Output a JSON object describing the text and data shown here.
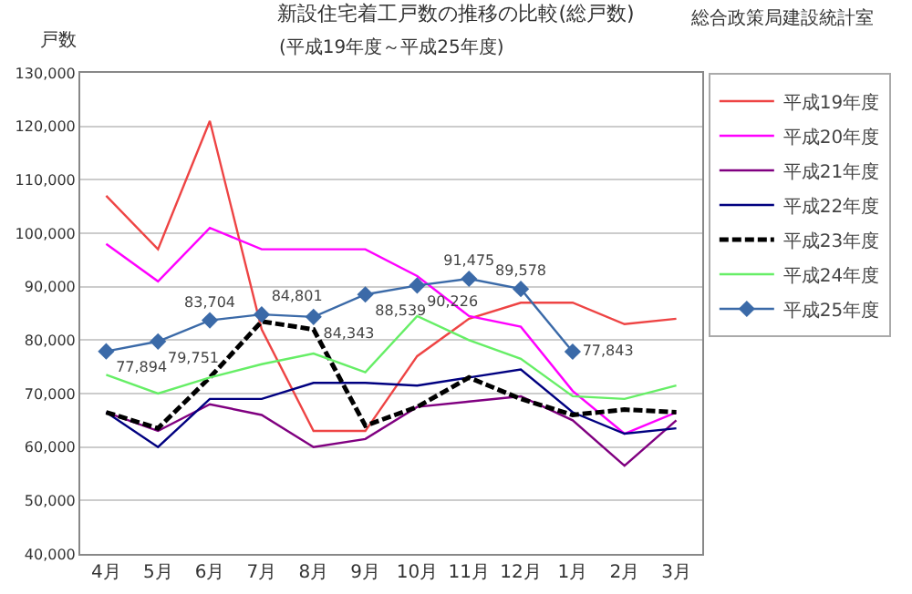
{
  "chart_data": {
    "type": "line",
    "title": "新設住宅着工戸数の推移の比較(総戸数)",
    "subtitle": "(平成19年度～平成25年度)",
    "ylabel": "戸数",
    "annotations": [
      "総合政策局建設統計室"
    ],
    "categories": [
      "4月",
      "5月",
      "6月",
      "7月",
      "8月",
      "9月",
      "10月",
      "11月",
      "12月",
      "1月",
      "2月",
      "3月"
    ],
    "ylim": [
      40000,
      130000
    ],
    "yticks": [
      {
        "value": 40000,
        "label": "40,000"
      },
      {
        "value": 50000,
        "label": "50,000"
      },
      {
        "value": 60000,
        "label": "60,000"
      },
      {
        "value": 70000,
        "label": "70,000"
      },
      {
        "value": 80000,
        "label": "80,000"
      },
      {
        "value": 90000,
        "label": "90,000"
      },
      {
        "value": 100000,
        "label": "100,000"
      },
      {
        "value": 110000,
        "label": "110,000"
      },
      {
        "value": 120000,
        "label": "120,000"
      },
      {
        "value": 130000,
        "label": "130,000"
      }
    ],
    "grid": "y",
    "legend": "right",
    "series": [
      {
        "name": "平成19年度",
        "color": "#ee4444",
        "values": [
          107000,
          97000,
          121000,
          82000,
          63000,
          63000,
          77000,
          84000,
          87000,
          87000,
          83000,
          84000
        ]
      },
      {
        "name": "平成20年度",
        "color": "#ff00ff",
        "values": [
          98000,
          91000,
          101000,
          97000,
          97000,
          97000,
          92000,
          84500,
          82500,
          70500,
          62500,
          66500
        ]
      },
      {
        "name": "平成21年度",
        "color": "#800080",
        "values": [
          66500,
          63000,
          68000,
          66000,
          60000,
          61500,
          67500,
          68500,
          69500,
          65000,
          56500,
          65000
        ]
      },
      {
        "name": "平成22年度",
        "color": "#000080",
        "values": [
          66500,
          60000,
          69000,
          69000,
          72000,
          72000,
          71500,
          73000,
          74500,
          66500,
          62500,
          63500
        ]
      },
      {
        "name": "平成23年度",
        "color": "#000000",
        "line_style": "dashed",
        "values": [
          66500,
          63500,
          73000,
          83500,
          82000,
          64000,
          67500,
          73000,
          69000,
          66000,
          67000,
          66500
        ]
      },
      {
        "name": "平成24年度",
        "color": "#66ee66",
        "values": [
          73500,
          70000,
          73000,
          75500,
          77500,
          74000,
          84500,
          80000,
          76500,
          69500,
          69000,
          71500
        ]
      },
      {
        "name": "平成25年度",
        "color": "#3b6aa8",
        "marker": "diamond",
        "value_labels": [
          "77,894",
          "79,751",
          "83,704",
          "84,801",
          "84,343",
          "88,539",
          "90,226",
          "91,475",
          "89,578",
          "77,843",
          null,
          null
        ],
        "values": [
          77894,
          79751,
          83704,
          84801,
          84343,
          88539,
          90226,
          91475,
          89578,
          77843,
          null,
          null
        ]
      }
    ]
  }
}
